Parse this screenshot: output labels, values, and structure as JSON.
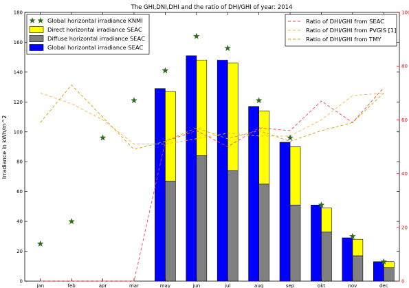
{
  "chart_data": {
    "type": "bar",
    "title": "The GHI,DNI,DHI and the ratio of DHI/GHI of year: 2014",
    "ylabel": "Irradiance in kWh/m^2",
    "ylim": [
      0,
      180
    ],
    "y2lim": [
      0,
      100
    ],
    "yticks": [
      0,
      20,
      40,
      60,
      80,
      100,
      120,
      140,
      160,
      180
    ],
    "y2ticks": [
      0,
      20,
      40,
      60,
      80,
      100
    ],
    "categories": [
      "jan",
      "feb",
      "apr",
      "mar",
      "may",
      "jun",
      "jul",
      "aug",
      "sep",
      "okt",
      "nov",
      "dec"
    ],
    "legend_left": [
      {
        "label": "Global horizontal irradiance KNMI",
        "color": "#2e6b1e",
        "marker": "star"
      },
      {
        "label": "Direct horizontal irradiance SEAC",
        "color": "#ffff00",
        "marker": "box"
      },
      {
        "label": "Diffuse horizontal irradiance SEAC",
        "color": "#808080",
        "marker": "box"
      },
      {
        "label": "Global horizontal irradiance SEAC",
        "color": "#0000ff",
        "marker": "box"
      }
    ],
    "legend_right": [
      {
        "label": "Ratio of DHI/GHI from SEAC",
        "color": "#ff4040"
      },
      {
        "label": "Ratio of DHI/GHI from PVGIS [1]",
        "color": "#ffb347"
      },
      {
        "label": "Ratio of DHI/GHI from TMY",
        "color": "#d2a000"
      }
    ],
    "series": [
      {
        "name": "Global horizontal irradiance KNMI",
        "axis": "left",
        "kind": "scatter",
        "color": "#2e6b1e",
        "values": [
          25,
          40,
          96,
          121,
          141,
          164,
          156,
          121,
          96,
          51,
          30,
          13
        ]
      },
      {
        "name": "Global horizontal irradiance SEAC",
        "axis": "left",
        "kind": "bar",
        "color": "#0000ff",
        "values": [
          0,
          0,
          0,
          0,
          129,
          151,
          148,
          117,
          93,
          51,
          29,
          13
        ]
      },
      {
        "name": "Direct horizontal irradiance SEAC",
        "axis": "left",
        "kind": "bar",
        "color": "#ffff00",
        "values": [
          0,
          0,
          0,
          0,
          60,
          64,
          72,
          49,
          39,
          16,
          11,
          4
        ]
      },
      {
        "name": "Diffuse horizontal irradiance SEAC",
        "axis": "left",
        "kind": "bar",
        "color": "#808080",
        "values": [
          0,
          0,
          0,
          0,
          67,
          84,
          74,
          65,
          51,
          33,
          17,
          9
        ]
      },
      {
        "name": "Ratio of DHI/GHI from SEAC",
        "axis": "right",
        "kind": "line",
        "color": "#ff4040",
        "values": [
          0,
          0,
          0,
          0,
          52,
          56,
          50,
          57,
          56,
          67,
          59,
          72
        ]
      },
      {
        "name": "Ratio of DHI/GHI from PVGIS [1]",
        "axis": "right",
        "kind": "line",
        "color": "#ffb347",
        "values": [
          70,
          66,
          60,
          51,
          51,
          53,
          55,
          54,
          54,
          60,
          69,
          70
        ]
      },
      {
        "name": "Ratio of DHI/GHI from TMY",
        "axis": "right",
        "kind": "line",
        "color": "#d2a000",
        "values": [
          59,
          73,
          61,
          49,
          52,
          57,
          53,
          56,
          52,
          56,
          59,
          70
        ]
      }
    ],
    "grid": false,
    "legend_placement": [
      "top-left",
      "top-right"
    ]
  }
}
